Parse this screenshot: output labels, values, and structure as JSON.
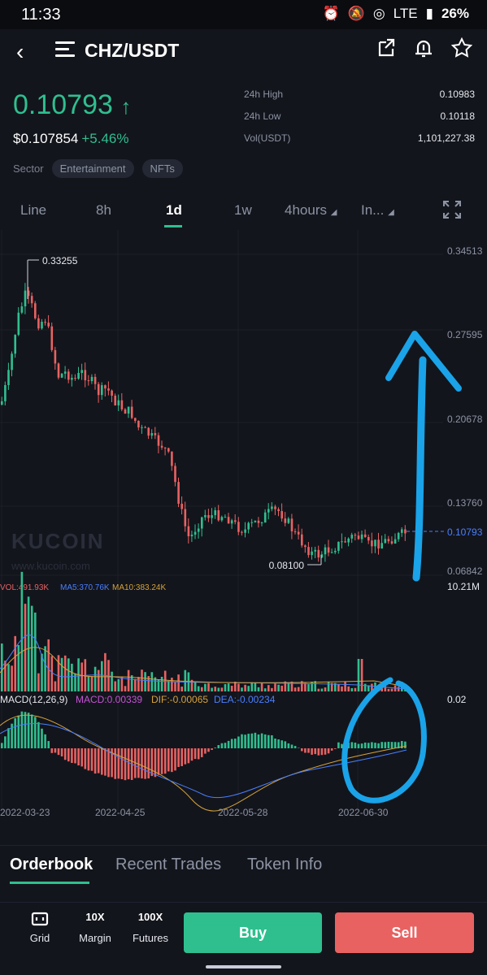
{
  "status_bar": {
    "time": "11:33",
    "network": "LTE",
    "battery": "26%"
  },
  "header": {
    "pair": "CHZ/USDT"
  },
  "price": {
    "last": "0.10793",
    "usd": "$0.107854",
    "change": "+5.46%"
  },
  "sector": {
    "label": "Sector",
    "tags": [
      "Entertainment",
      "NFTs"
    ]
  },
  "stats": [
    {
      "label": "24h High",
      "value": "0.10983"
    },
    {
      "label": "24h Low",
      "value": "0.10118"
    },
    {
      "label": "Vol(USDT)",
      "value": "1,101,227.38"
    }
  ],
  "tabs": [
    "Line",
    "8h",
    "1d",
    "1w",
    "4hours",
    "In..."
  ],
  "chart_data": {
    "type": "candlestick",
    "price_axis_ticks": [
      "0.34513",
      "0.27595",
      "0.20678",
      "0.13760",
      "0.06842"
    ],
    "current_price_label": "0.10793",
    "max_label": "0.33255",
    "min_label": "0.08100",
    "volume_legend": {
      "vol": "VOL:491.93K",
      "ma5": "MA5:370.76K",
      "ma10": "MA10:383.24K",
      "axis_max": "10.21M"
    },
    "macd_legend": {
      "name": "MACD(12,26,9)",
      "macd": "MACD:0.00339",
      "dif": "DIF:-0.00065",
      "dea": "DEA:-0.00234",
      "axis": "0.02"
    },
    "x_labels": [
      "2022-03-23",
      "2022-04-25",
      "2022-05-28",
      "2022-06-30"
    ],
    "colors": {
      "up": "#2fbf8f",
      "down": "#e86262",
      "ma5": "#4a7fff",
      "ma10": "#d4a23a",
      "annotation": "#1aa3e8"
    },
    "watermark": "KUCOIN",
    "watermark_url": "www.kucoin.com"
  },
  "bottom_tabs": [
    "Orderbook",
    "Recent Trades",
    "Token Info"
  ],
  "actions": {
    "grid": "Grid",
    "margin": "Margin",
    "futures": "Futures",
    "buy": "Buy",
    "sell": "Sell"
  }
}
